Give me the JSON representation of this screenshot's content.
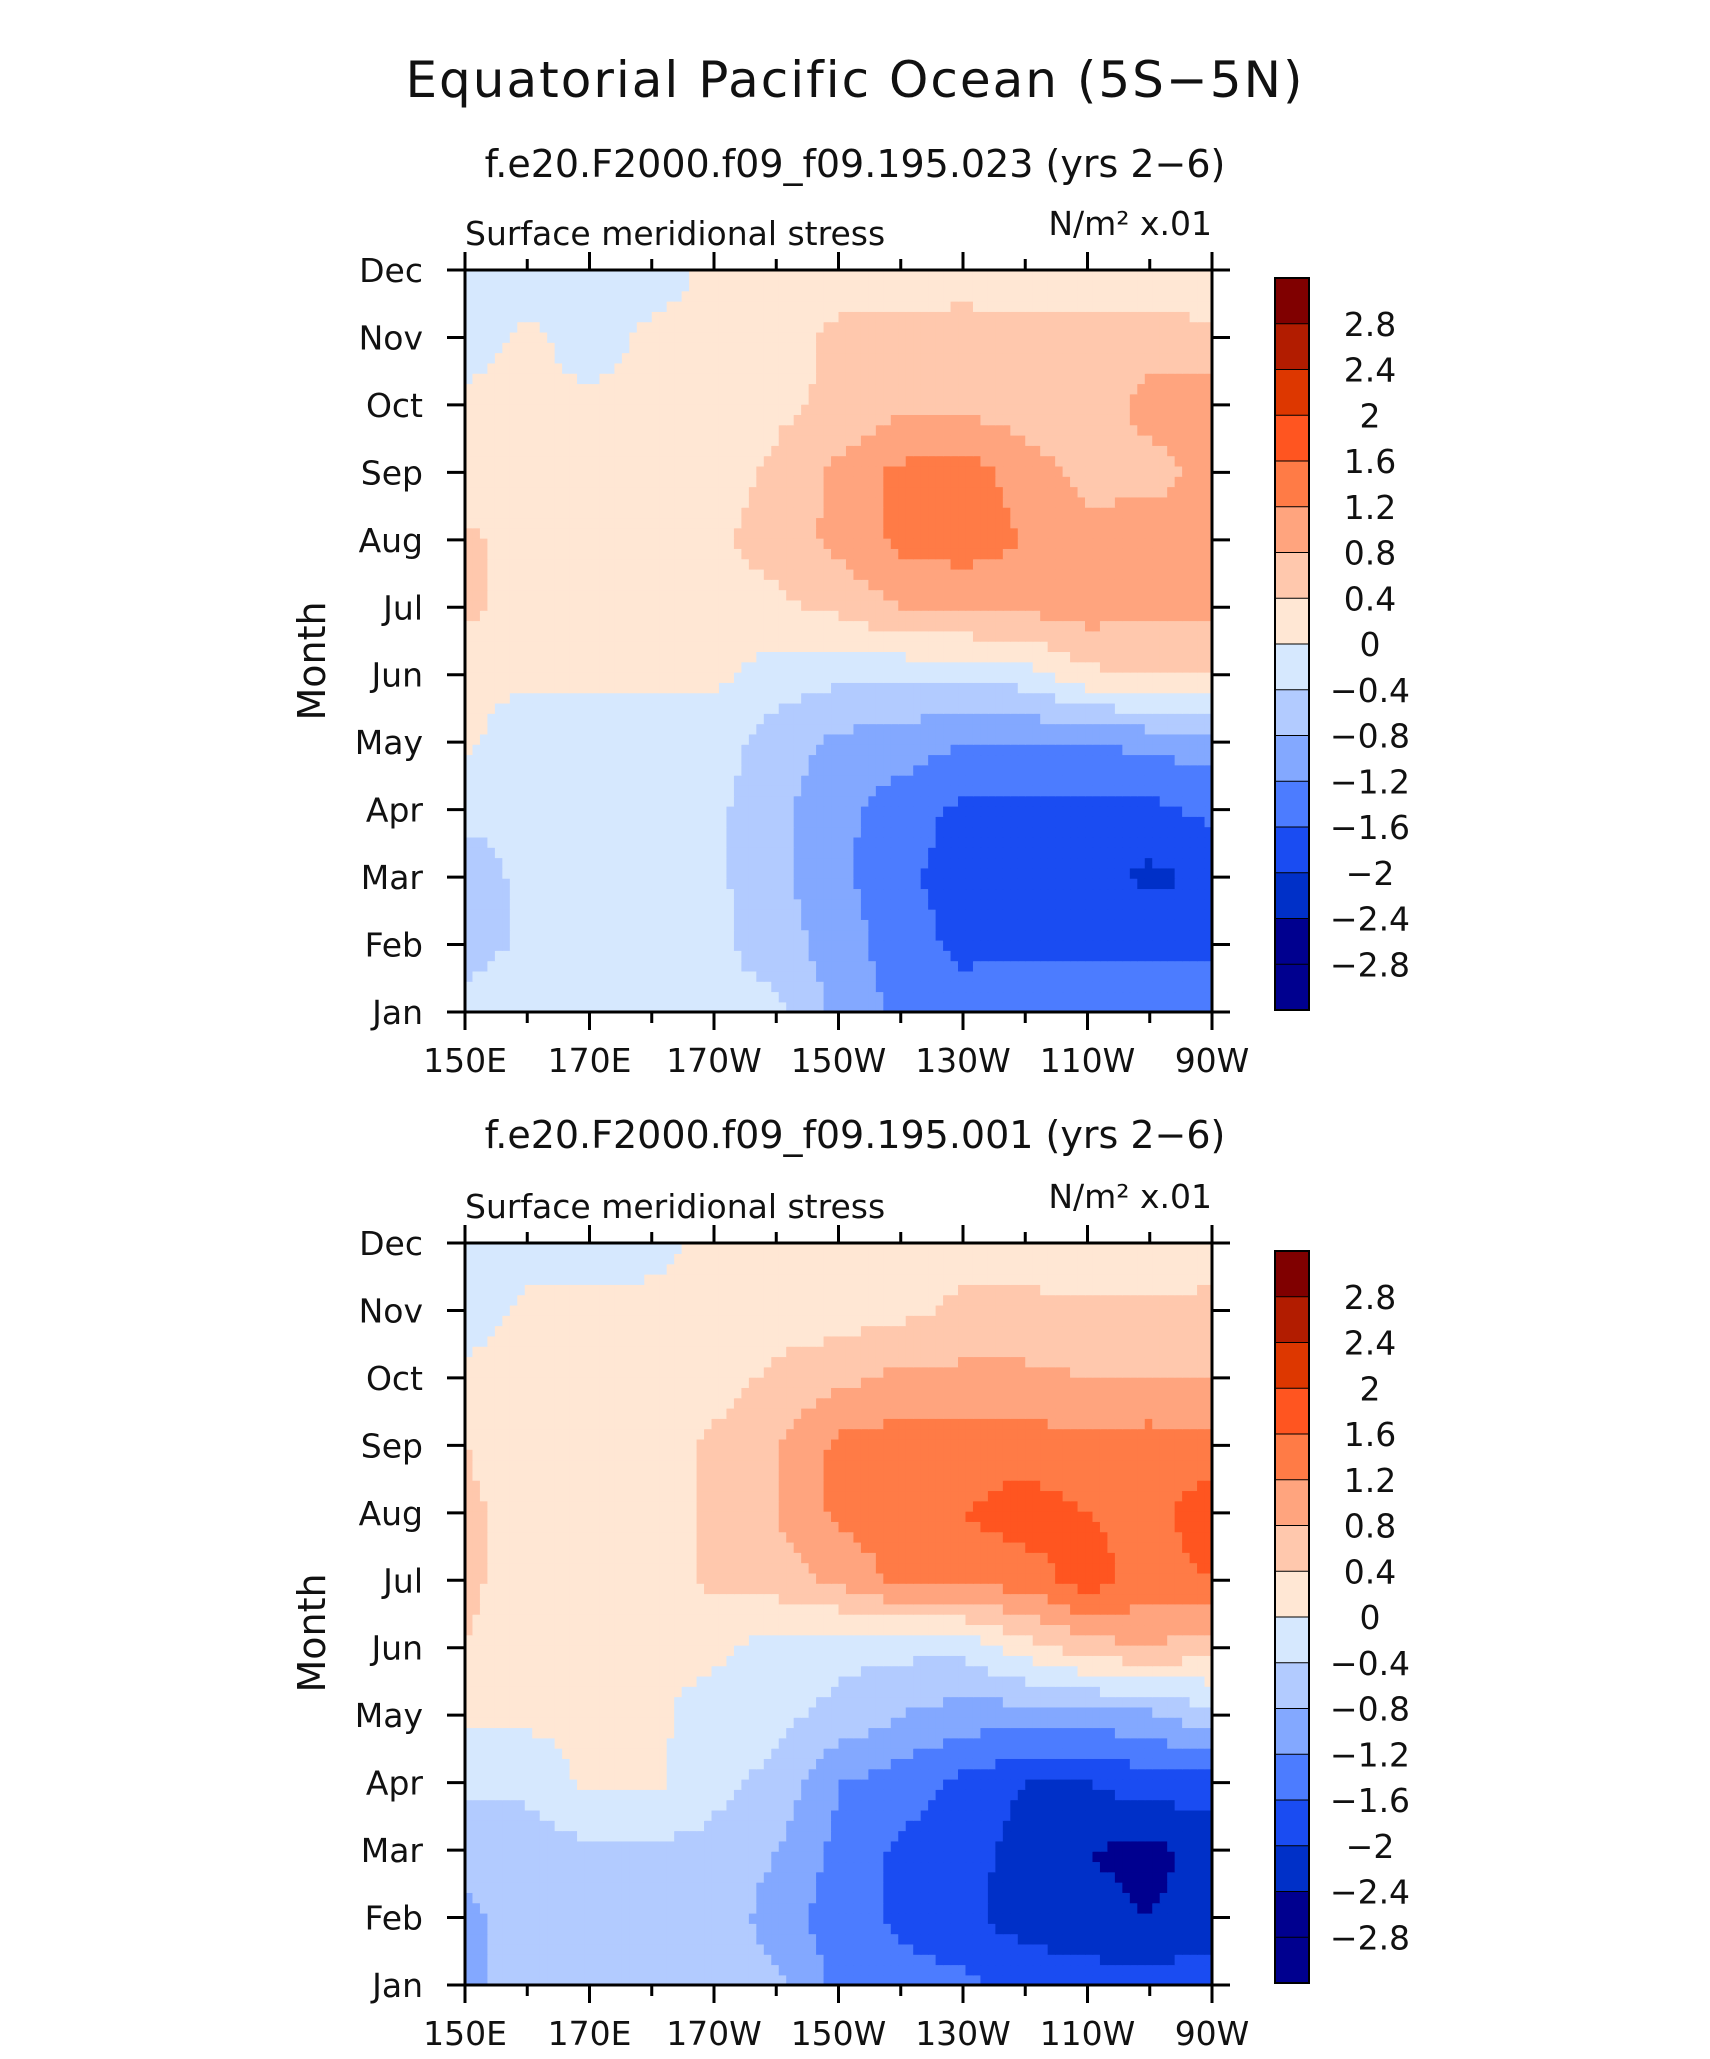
{
  "title": "Equatorial Pacific Ocean (5S−5N)",
  "colorbar_levels": [
    "2.8",
    "2.4",
    "2",
    "1.6",
    "1.2",
    "0.8",
    "0.4",
    "0",
    "−0.4",
    "−0.8",
    "−1.2",
    "−1.6",
    "−2",
    "−2.4",
    "−2.8"
  ],
  "colors": [
    "#800000",
    "#b21c00",
    "#dd3700",
    "#ff5520",
    "#ff7b46",
    "#ffa47e",
    "#ffc8ad",
    "#ffe7d4",
    "#d6e8fe",
    "#b2cbff",
    "#83a8ff",
    "#4c7cff",
    "#1a4cf2",
    "#0030c8",
    "#00008f"
  ],
  "chart_data": [
    {
      "type": "heatmap",
      "subtitle": "f.e20.F2000.f09_f09.195.023 (yrs 2−6)",
      "left_label": "Surface meridional stress",
      "units": "N/m² x.01",
      "xlabel": "",
      "ylabel": "Month",
      "x_ticks": [
        "150E",
        "170E",
        "170W",
        "150W",
        "130W",
        "110W",
        "90W"
      ],
      "y_ticks": [
        "Jan",
        "Feb",
        "Mar",
        "Apr",
        "May",
        "Jun",
        "Jul",
        "Aug",
        "Sep",
        "Oct",
        "Nov",
        "Dec"
      ],
      "xlim": [
        "150E",
        "90W"
      ],
      "values": [
        [
          -0.2,
          -0.2,
          -0.3,
          -0.3,
          -0.3,
          -0.3,
          -0.9,
          -1.3,
          -1.4,
          -1.3,
          -1.2,
          -1.2,
          -1.3
        ],
        [
          -0.6,
          -0.3,
          -0.3,
          -0.3,
          -0.3,
          -0.6,
          -1.0,
          -1.4,
          -1.7,
          -1.7,
          -1.7,
          -1.7,
          -1.7
        ],
        [
          -0.6,
          -0.3,
          -0.3,
          -0.3,
          -0.3,
          -0.7,
          -1.1,
          -1.5,
          -1.8,
          -1.8,
          -1.8,
          -2.1,
          -1.9
        ],
        [
          -0.3,
          -0.3,
          -0.3,
          -0.3,
          -0.3,
          -0.7,
          -1.1,
          -1.4,
          -1.7,
          -1.7,
          -1.7,
          -1.7,
          -1.5
        ],
        [
          0.1,
          -0.3,
          -0.3,
          -0.2,
          -0.2,
          -0.6,
          -0.9,
          -1.0,
          -1.2,
          -1.2,
          -1.2,
          -1.1,
          -1.0
        ],
        [
          0.1,
          0.1,
          0.1,
          0.1,
          0.1,
          -0.2,
          -0.3,
          -0.3,
          -0.3,
          -0.2,
          0.3,
          0.4,
          0.4
        ],
        [
          0.5,
          0.2,
          0.2,
          0.2,
          0.2,
          0.3,
          0.5,
          0.8,
          0.9,
          0.9,
          1.0,
          0.9,
          0.9
        ],
        [
          0.5,
          0.2,
          0.2,
          0.2,
          0.3,
          0.6,
          0.9,
          1.3,
          1.4,
          1.2,
          0.9,
          1.1,
          1.0
        ],
        [
          0.1,
          0.1,
          0.1,
          0.1,
          0.2,
          0.5,
          0.9,
          1.3,
          1.4,
          1.0,
          0.7,
          0.6,
          1.0
        ],
        [
          0.1,
          0.1,
          0.1,
          0.1,
          0.1,
          0.3,
          0.5,
          0.7,
          0.7,
          0.6,
          0.5,
          1.0,
          1.0
        ],
        [
          -0.2,
          0.1,
          -0.2,
          0.1,
          0.1,
          0.2,
          0.5,
          0.5,
          0.5,
          0.5,
          0.5,
          0.6,
          0.5
        ],
        [
          -0.3,
          -0.3,
          -0.2,
          -0.2,
          0.1,
          0.1,
          0.2,
          0.2,
          0.3,
          0.2,
          0.2,
          0.1,
          0.1
        ]
      ]
    },
    {
      "type": "heatmap",
      "subtitle": "f.e20.F2000.f09_f09.195.001 (yrs 2−6)",
      "left_label": "Surface meridional stress",
      "units": "N/m² x.01",
      "xlabel": "",
      "ylabel": "Month",
      "x_ticks": [
        "150E",
        "170E",
        "170W",
        "150W",
        "130W",
        "110W",
        "90W"
      ],
      "y_ticks": [
        "Jan",
        "Feb",
        "Mar",
        "Apr",
        "May",
        "Jun",
        "Jul",
        "Aug",
        "Sep",
        "Oct",
        "Nov",
        "Dec"
      ],
      "xlim": [
        "150E",
        "90W"
      ],
      "values": [
        [
          -0.9,
          -0.6,
          -0.5,
          -0.5,
          -0.7,
          -0.7,
          -1.3,
          -1.4,
          -1.5,
          -1.7,
          -1.8,
          -1.8,
          -1.8
        ],
        [
          -0.9,
          -0.6,
          -0.6,
          -0.6,
          -0.5,
          -1.0,
          -1.4,
          -1.7,
          -1.9,
          -2.2,
          -2.3,
          -2.4,
          -2.2
        ],
        [
          -0.7,
          -0.6,
          -0.5,
          -0.5,
          -0.5,
          -0.8,
          -1.3,
          -1.7,
          -1.8,
          -2.2,
          -2.4,
          -2.5,
          -2.3
        ],
        [
          -0.3,
          -0.3,
          0.1,
          0.1,
          -0.3,
          -0.5,
          -1.2,
          -1.4,
          -1.7,
          -2.0,
          -2.0,
          -1.8,
          -1.8
        ],
        [
          0.1,
          0.1,
          0.1,
          0.1,
          -0.2,
          -0.3,
          -0.5,
          -0.8,
          -1.0,
          -1.0,
          -1.0,
          -0.9,
          -0.5
        ],
        [
          0.4,
          0.1,
          0.1,
          0.1,
          0.1,
          -0.2,
          -0.3,
          -0.3,
          -0.3,
          0.2,
          0.6,
          0.8,
          0.5
        ],
        [
          0.5,
          0.2,
          0.2,
          0.2,
          0.5,
          0.6,
          0.9,
          1.3,
          1.3,
          1.4,
          1.8,
          1.4,
          1.6
        ],
        [
          0.5,
          0.2,
          0.2,
          0.2,
          0.5,
          0.8,
          1.3,
          1.4,
          1.6,
          1.8,
          1.6,
          1.4,
          1.9
        ],
        [
          0.4,
          0.2,
          0.2,
          0.2,
          0.5,
          0.8,
          1.3,
          1.4,
          1.4,
          1.4,
          1.3,
          1.4,
          1.3
        ],
        [
          0.1,
          0.1,
          0.1,
          0.1,
          0.2,
          0.5,
          0.7,
          0.9,
          0.9,
          0.9,
          0.8,
          0.8,
          0.8
        ],
        [
          -0.2,
          0.1,
          0.1,
          0.1,
          0.1,
          0.2,
          0.2,
          0.3,
          0.5,
          0.5,
          0.5,
          0.5,
          0.5
        ],
        [
          -0.2,
          -0.2,
          -0.2,
          -0.1,
          0.1,
          0.1,
          0.1,
          0.1,
          0.2,
          0.2,
          0.1,
          0.1,
          0.2
        ]
      ]
    }
  ]
}
